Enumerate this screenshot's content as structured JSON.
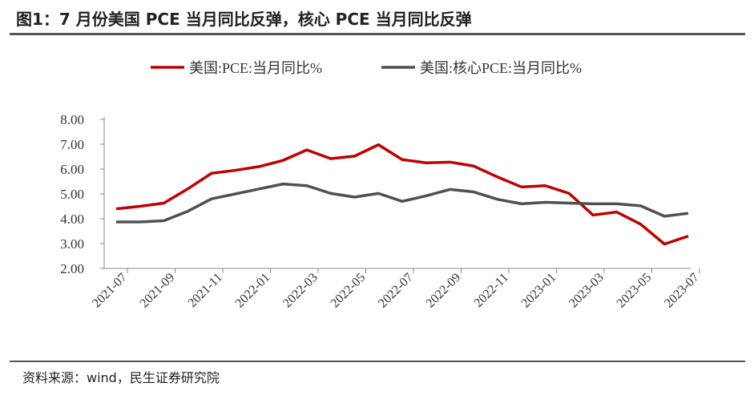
{
  "title": "图1：7 月份美国 PCE 当月同比反弹，核心 PCE 当月同比反弹",
  "source": "资料来源：wind，民生证券研究院",
  "chart_data": {
    "type": "line",
    "x": [
      "2021-07",
      "2021-08",
      "2021-09",
      "2021-10",
      "2021-11",
      "2021-12",
      "2022-01",
      "2022-02",
      "2022-03",
      "2022-04",
      "2022-05",
      "2022-06",
      "2022-07",
      "2022-08",
      "2022-09",
      "2022-10",
      "2022-11",
      "2022-12",
      "2023-01",
      "2023-02",
      "2023-03",
      "2023-04",
      "2023-05",
      "2023-06",
      "2023-07"
    ],
    "xticklabels": [
      "2021-07",
      "2021-09",
      "2021-11",
      "2022-01",
      "2022-03",
      "2022-05",
      "2022-07",
      "2022-09",
      "2022-11",
      "2023-01",
      "2023-03",
      "2023-05",
      "2023-07"
    ],
    "yticklabels": [
      "2.00",
      "3.00",
      "4.00",
      "5.00",
      "6.00",
      "7.00",
      "8.00"
    ],
    "ylim": [
      2,
      8
    ],
    "legend_position": "top",
    "series": [
      {
        "name": "美国:PCE:当月同比%",
        "color": "#C00000",
        "values": [
          4.4,
          4.5,
          4.63,
          5.2,
          5.83,
          5.95,
          6.1,
          6.35,
          6.77,
          6.42,
          6.52,
          6.98,
          6.38,
          6.25,
          6.28,
          6.12,
          5.68,
          5.28,
          5.33,
          5.02,
          4.15,
          4.27,
          3.78,
          2.98,
          3.3
        ]
      },
      {
        "name": "美国:核心PCE:当月同比%",
        "color": "#505050",
        "values": [
          3.87,
          3.87,
          3.92,
          4.3,
          4.8,
          5.0,
          5.2,
          5.4,
          5.33,
          5.02,
          4.87,
          5.02,
          4.7,
          4.92,
          5.18,
          5.08,
          4.78,
          4.6,
          4.66,
          4.63,
          4.6,
          4.6,
          4.52,
          4.1,
          4.22
        ]
      }
    ]
  }
}
